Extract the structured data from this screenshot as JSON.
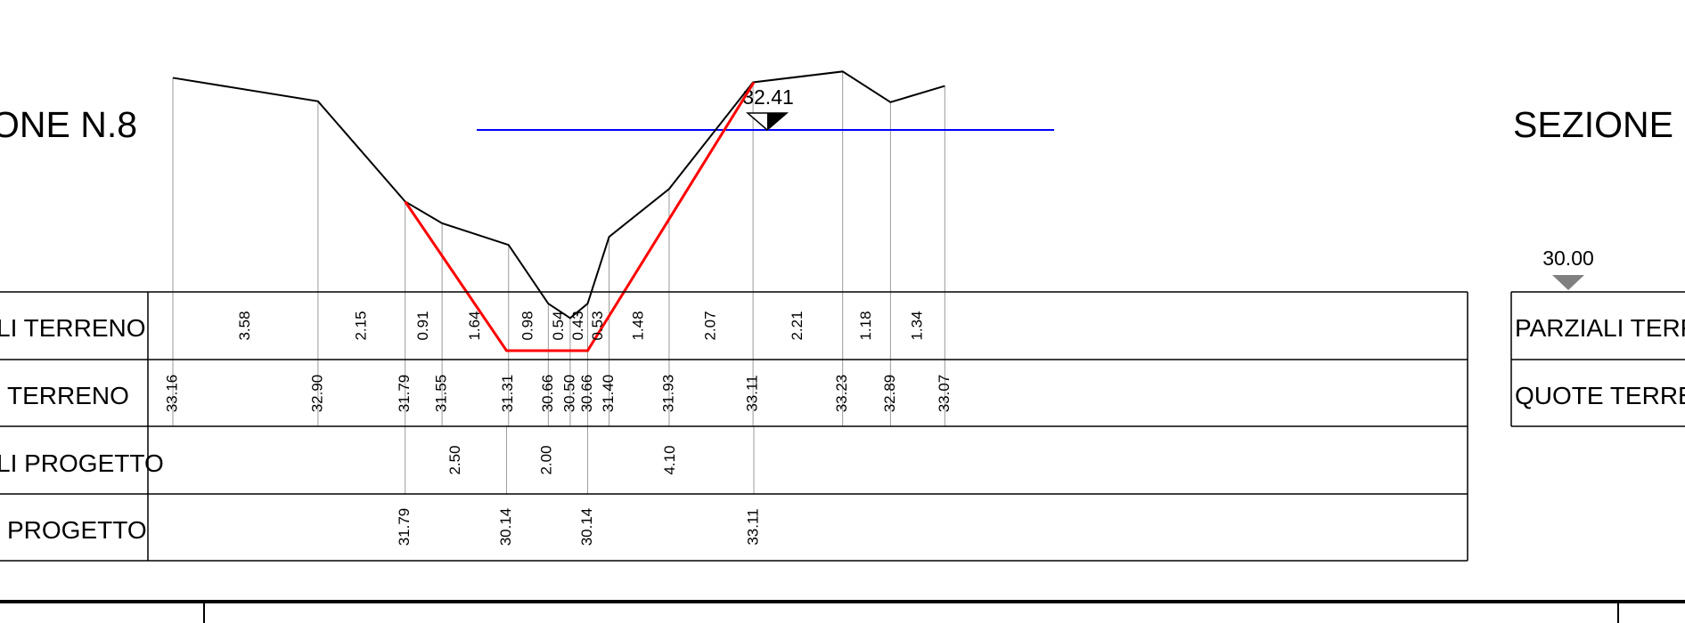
{
  "section_left_title": "ONE N.8",
  "section_right_title": "SEZIONE N",
  "water_level_label": "32.41",
  "datum_label": "30.00",
  "row_labels": {
    "left_partial_terrain": "LI  TERRENO",
    "left_quote_terrain": "TERRENO",
    "left_partial_project": "LI  PROGETTO",
    "left_quote_project": "PROGETTO",
    "right_partial_terrain": "PARZIALI  TERRE",
    "right_quote_terrain": "QUOTE  TERREN"
  },
  "terrain_distances": [
    "3.58",
    "2.15",
    "0.91",
    "1.64",
    "0.98",
    "0.54",
    "0.43",
    "0.53",
    "1.48",
    "2.07",
    "2.21",
    "1.18",
    "1.34"
  ],
  "terrain_elevations": [
    "33.16",
    "32.90",
    "31.79",
    "31.55",
    "31.31",
    "30.66",
    "30.50",
    "30.66",
    "31.40",
    "31.93",
    "33.11",
    "33.23",
    "32.89",
    "33.07"
  ],
  "project_distances": [
    "2.50",
    "2.00",
    "4.10"
  ],
  "project_elevations": [
    "31.79",
    "30.14",
    "30.14",
    "33.11"
  ],
  "colors": {
    "terrain_line": "#000000",
    "project_line": "#ff0000",
    "water_line": "#0000ff",
    "grid_line": "#9a9a9a",
    "datum_marker": "#808080"
  }
}
